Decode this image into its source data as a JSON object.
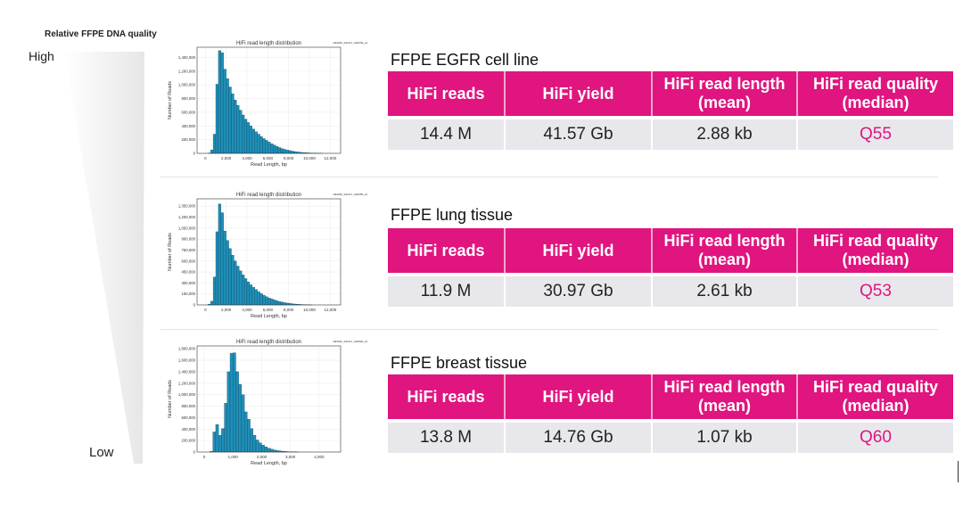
{
  "legend_panel": {
    "title": "Relative FFPE DNA quality",
    "high_label": "High",
    "low_label": "Low"
  },
  "colors": {
    "accent": "#e0157f",
    "bar": "#1f8fb8",
    "row_bg": "#e8e8ec"
  },
  "table_headers": [
    "HiFi reads",
    "HiFi yield",
    "HiFi read length (mean)",
    "HiFi read quality (median)"
  ],
  "samples": [
    {
      "title": "FFPE EGFR cell line",
      "values": [
        "14.4 M",
        "41.57 Gb",
        "2.88 kb",
        "Q55"
      ]
    },
    {
      "title": "FFPE lung tissue",
      "values": [
        "11.9 M",
        "30.97 Gb",
        "2.61 kb",
        "Q53"
      ]
    },
    {
      "title": "FFPE breast tissue",
      "values": [
        "13.8 M",
        "14.76 Gb",
        "1.07 kb",
        "Q60"
      ]
    }
  ],
  "chart_data": [
    {
      "type": "bar",
      "title": "HiFi read length distribution",
      "sample_id": "m84036_241217_000249_s4",
      "xlabel": "Read Length, bp",
      "ylabel": "Number of Reads",
      "bin_width": 250,
      "xlim": [
        -800,
        13000
      ],
      "ylim": [
        0,
        1550000
      ],
      "xticks": [
        0,
        2000,
        4000,
        6000,
        8000,
        10000,
        12000
      ],
      "xtick_labels": [
        "0",
        "2,000",
        "4,000",
        "6,000",
        "8,000",
        "10,000",
        "12,000"
      ],
      "yticks": [
        0,
        200000,
        400000,
        600000,
        800000,
        1000000,
        1200000,
        1400000
      ],
      "ytick_labels": [
        "0",
        "200,000",
        "400,000",
        "600,000",
        "800,000",
        "1,000,000",
        "1,200,000",
        "1,400,000"
      ],
      "grid": true,
      "bin_starts": [
        0,
        250,
        500,
        750,
        1000,
        1250,
        1500,
        1750,
        2000,
        2250,
        2500,
        2750,
        3000,
        3250,
        3500,
        3750,
        4000,
        4250,
        4500,
        4750,
        5000,
        5250,
        5500,
        5750,
        6000,
        6250,
        6500,
        6750,
        7000,
        7250,
        7500,
        7750,
        8000,
        8250,
        8500,
        8750,
        9000,
        9250,
        9500,
        9750,
        10000,
        10250,
        10500,
        10750,
        11000
      ],
      "values": [
        0,
        5000,
        50000,
        280000,
        1010000,
        1500000,
        1470000,
        1230000,
        1090000,
        970000,
        870000,
        780000,
        700000,
        630000,
        560000,
        500000,
        450000,
        400000,
        355000,
        315000,
        280000,
        245000,
        215000,
        190000,
        165000,
        140000,
        120000,
        100000,
        85000,
        70000,
        58000,
        48000,
        40000,
        32000,
        26000,
        20000,
        16000,
        12000,
        9000,
        7000,
        5000,
        3500,
        2500,
        1500,
        1000
      ]
    },
    {
      "type": "bar",
      "title": "HiFi read length distribution",
      "sample_id": "m84036_241217_020655_s2",
      "xlabel": "Read Length, bp",
      "ylabel": "Number of Reads",
      "bin_width": 250,
      "xlim": [
        -800,
        13000
      ],
      "ylim": [
        0,
        1450000
      ],
      "xticks": [
        0,
        2000,
        4000,
        6000,
        8000,
        10000,
        12000
      ],
      "xtick_labels": [
        "0",
        "2,000",
        "4,000",
        "6,000",
        "8,000",
        "10,000",
        "12,000"
      ],
      "yticks": [
        0,
        150000,
        300000,
        450000,
        600000,
        750000,
        900000,
        1050000,
        1200000,
        1350000
      ],
      "ytick_labels": [
        "0",
        "150,000",
        "300,000",
        "450,000",
        "600,000",
        "750,000",
        "900,000",
        "1,050,000",
        "1,200,000",
        "1,350,000"
      ],
      "grid": true,
      "bin_starts": [
        0,
        250,
        500,
        750,
        1000,
        1250,
        1500,
        1750,
        2000,
        2250,
        2500,
        2750,
        3000,
        3250,
        3500,
        3750,
        4000,
        4250,
        4500,
        4750,
        5000,
        5250,
        5500,
        5750,
        6000,
        6250,
        6500,
        6750,
        7000,
        7250,
        7500,
        7750,
        8000,
        8250,
        8500,
        8750,
        9000,
        9250,
        9500,
        9750,
        10000
      ],
      "values": [
        0,
        10000,
        50000,
        380000,
        1000000,
        1380000,
        1260000,
        1010000,
        880000,
        770000,
        680000,
        600000,
        530000,
        465000,
        410000,
        360000,
        315000,
        275000,
        240000,
        210000,
        180000,
        155000,
        133000,
        113000,
        96000,
        81000,
        68000,
        56000,
        46000,
        38000,
        31000,
        25000,
        20000,
        16000,
        12000,
        9000,
        7000,
        5000,
        3500,
        2500,
        1500
      ]
    },
    {
      "type": "bar",
      "title": "HiFi read length distribution",
      "sample_id": "m84036_241217_040830_s3",
      "xlabel": "Read Length, bp",
      "ylabel": "Number of Reads",
      "bin_width": 100,
      "xlim": [
        -250,
        4750
      ],
      "ylim": [
        0,
        1850000
      ],
      "xticks": [
        0,
        1000,
        2000,
        3000,
        4000
      ],
      "xtick_labels": [
        "0",
        "1,000",
        "2,000",
        "3,000",
        "4,000"
      ],
      "yticks": [
        0,
        200000,
        400000,
        600000,
        800000,
        1000000,
        1200000,
        1400000,
        1600000,
        1800000
      ],
      "ytick_labels": [
        "0",
        "200,000",
        "400,000",
        "600,000",
        "800,000",
        "1,000,000",
        "1,200,000",
        "1,400,000",
        "1,600,000",
        "1,800,000"
      ],
      "grid": true,
      "bin_starts": [
        200,
        300,
        400,
        500,
        600,
        700,
        800,
        900,
        1000,
        1100,
        1200,
        1300,
        1400,
        1500,
        1600,
        1700,
        1800,
        1900,
        2000,
        2100,
        2200,
        2300,
        2400,
        2500,
        2600,
        2700,
        2800,
        2900,
        3000,
        3100,
        3200
      ],
      "values": [
        10000,
        350000,
        480000,
        290000,
        410000,
        850000,
        1400000,
        1720000,
        1730000,
        1400000,
        1180000,
        1000000,
        700000,
        570000,
        410000,
        290000,
        210000,
        160000,
        120000,
        90000,
        65000,
        50000,
        35000,
        25000,
        18000,
        13000,
        9000,
        6000,
        4000,
        3000,
        2000
      ]
    }
  ]
}
